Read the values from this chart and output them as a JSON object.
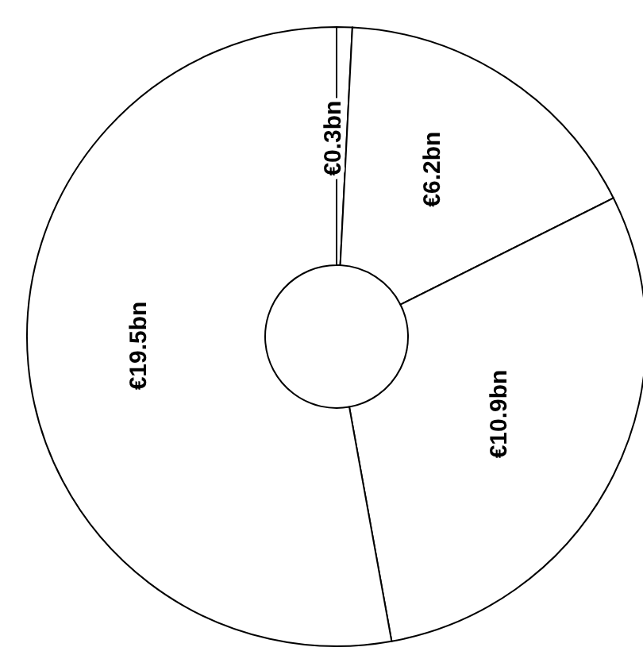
{
  "chart_data": {
    "type": "donut",
    "categories": [
      null,
      null,
      null,
      null
    ],
    "values": [
      0.3,
      6.2,
      10.9,
      19.5
    ],
    "colors": [
      "#ffffff",
      "#ffffff",
      "#ffffff",
      "#ffffff"
    ],
    "value_labels": [
      "€0.3bn",
      "€6.2bn",
      "€10.9bn",
      "€19.5bn"
    ]
  }
}
